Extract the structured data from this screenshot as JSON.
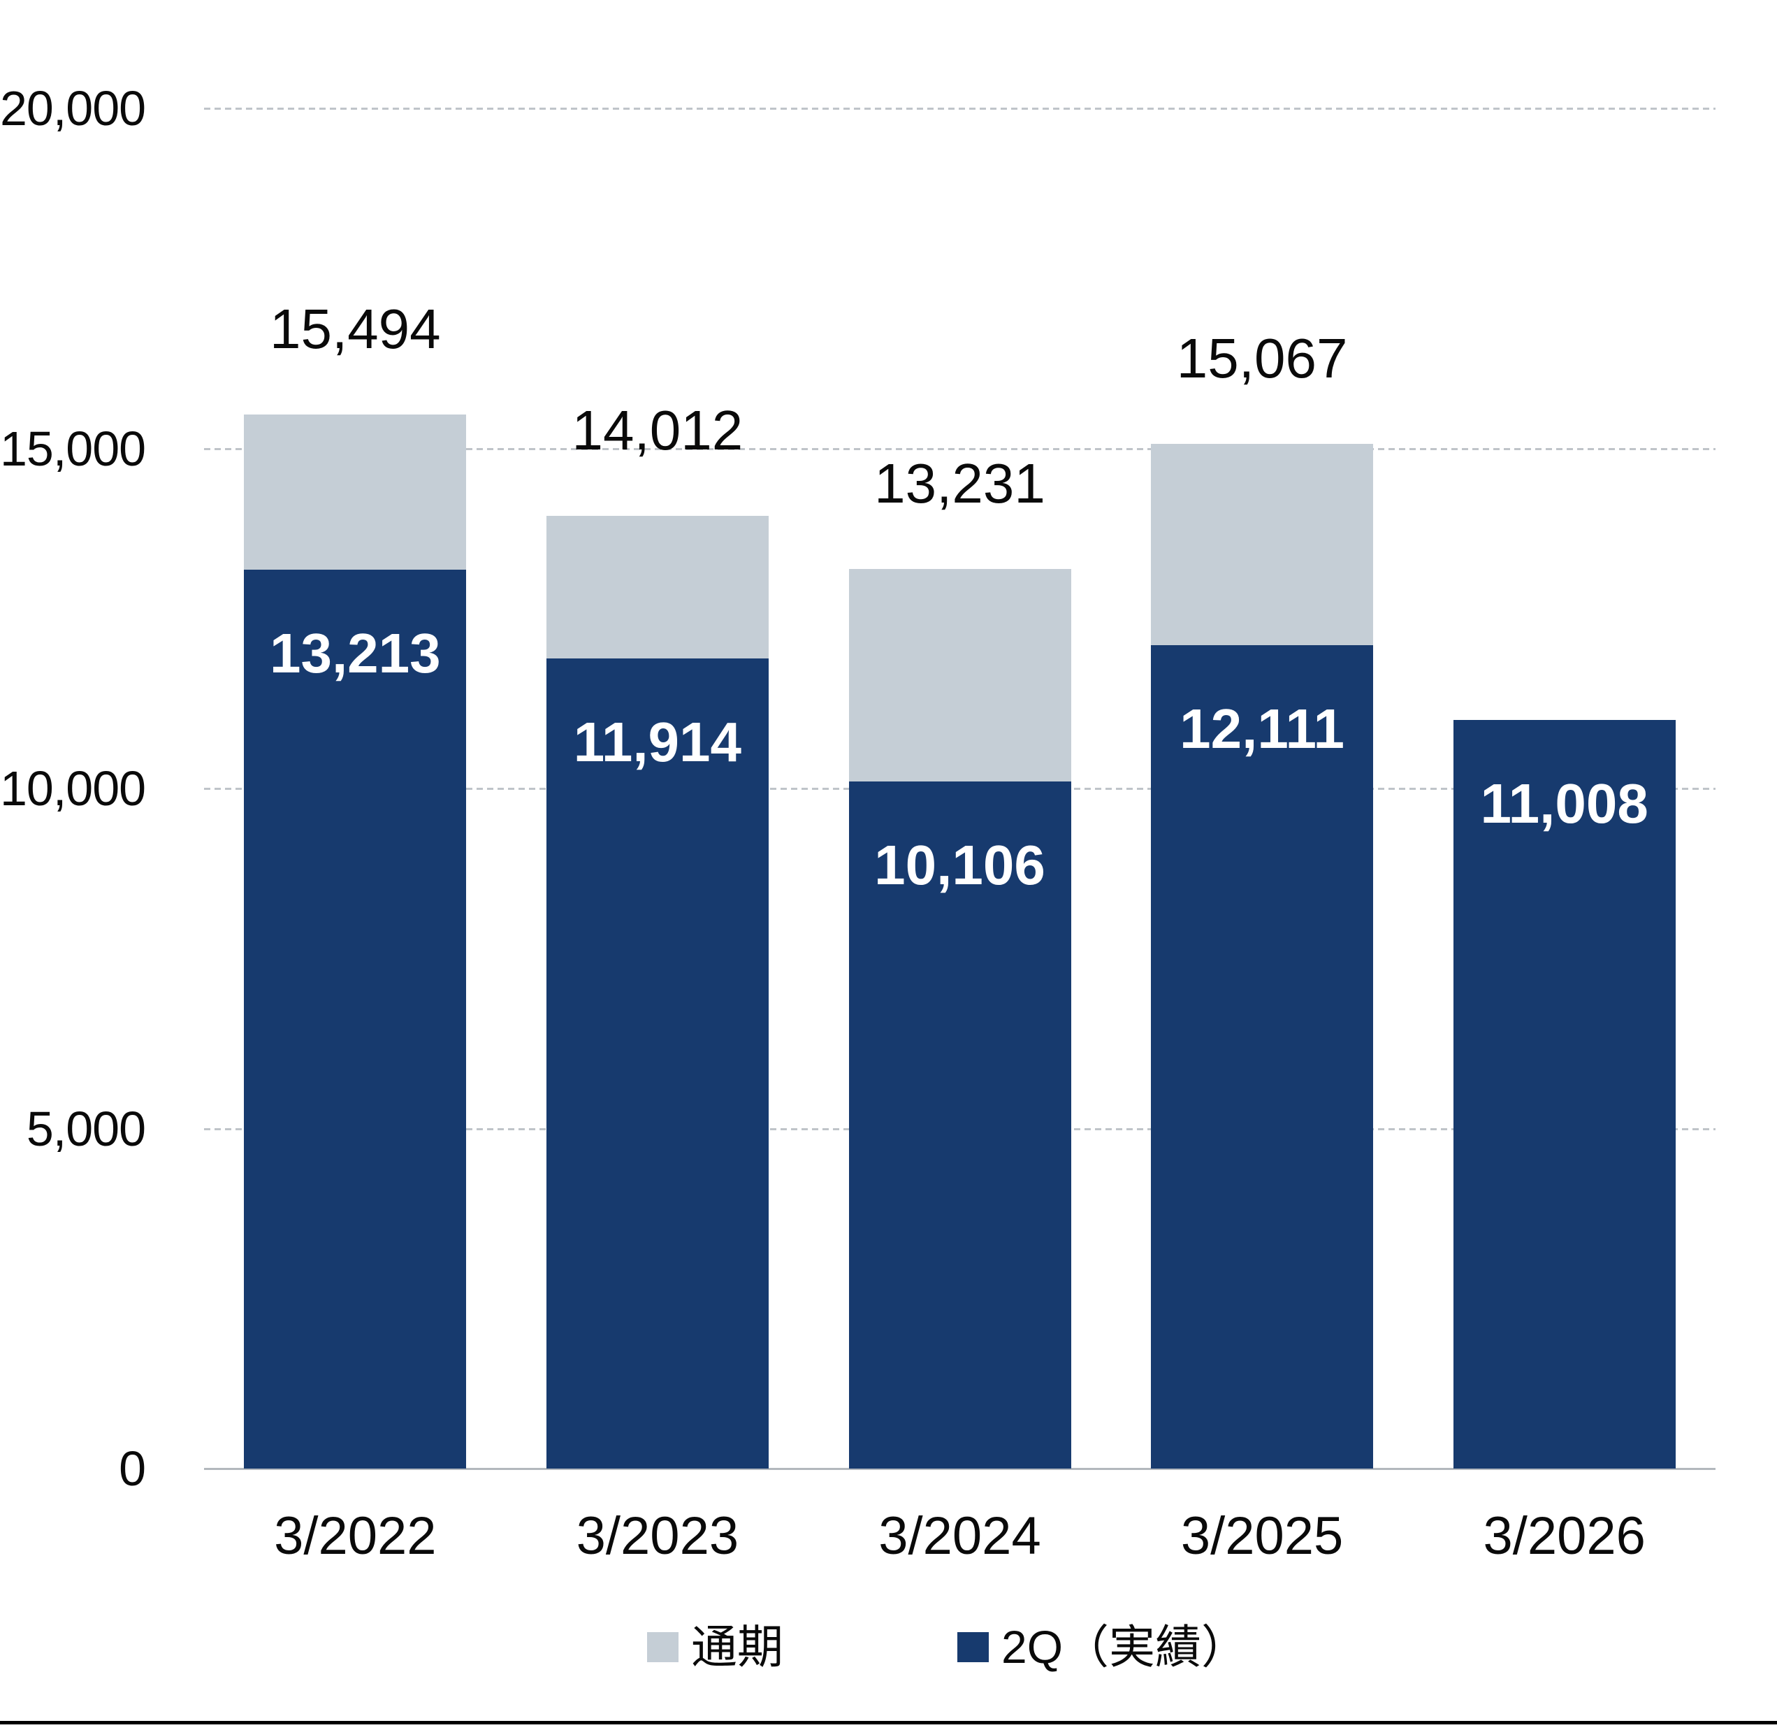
{
  "chart_data": {
    "type": "bar",
    "title": "",
    "xlabel": "",
    "ylabel": "",
    "categories": [
      "3/2022",
      "3/2023",
      "3/2024",
      "3/2025",
      "3/2026"
    ],
    "series": [
      {
        "name": "通期",
        "color": "#c5ced6",
        "values": [
          15494,
          14012,
          13231,
          15067,
          null
        ],
        "labels": [
          "15,494",
          "14,012",
          "13,231",
          "15,067",
          null
        ],
        "label_color": "#0a0a0a",
        "label_position": "above-bar"
      },
      {
        "name": "2Q（実績）",
        "color": "#173a6e",
        "values": [
          13213,
          11914,
          10106,
          12111,
          11008
        ],
        "labels": [
          "13,213",
          "11,914",
          "10,106",
          "12,111",
          "11,008"
        ],
        "label_color": "#ffffff",
        "label_position": "inside-bar-top"
      }
    ],
    "ylim": [
      0,
      20000
    ],
    "yticks": [
      {
        "value": 0,
        "label": "0"
      },
      {
        "value": 5000,
        "label": "5,000"
      },
      {
        "value": 10000,
        "label": "10,000"
      },
      {
        "value": 15000,
        "label": "15,000"
      },
      {
        "value": 20000,
        "label": "20,000"
      }
    ],
    "grid": "horizontal-dashed",
    "legend_position": "bottom",
    "colors": {
      "gridline": "#bfc4c9",
      "baseline": "#b3b8bd",
      "background": "#ffffff",
      "bottom_rule": "#000000"
    }
  }
}
